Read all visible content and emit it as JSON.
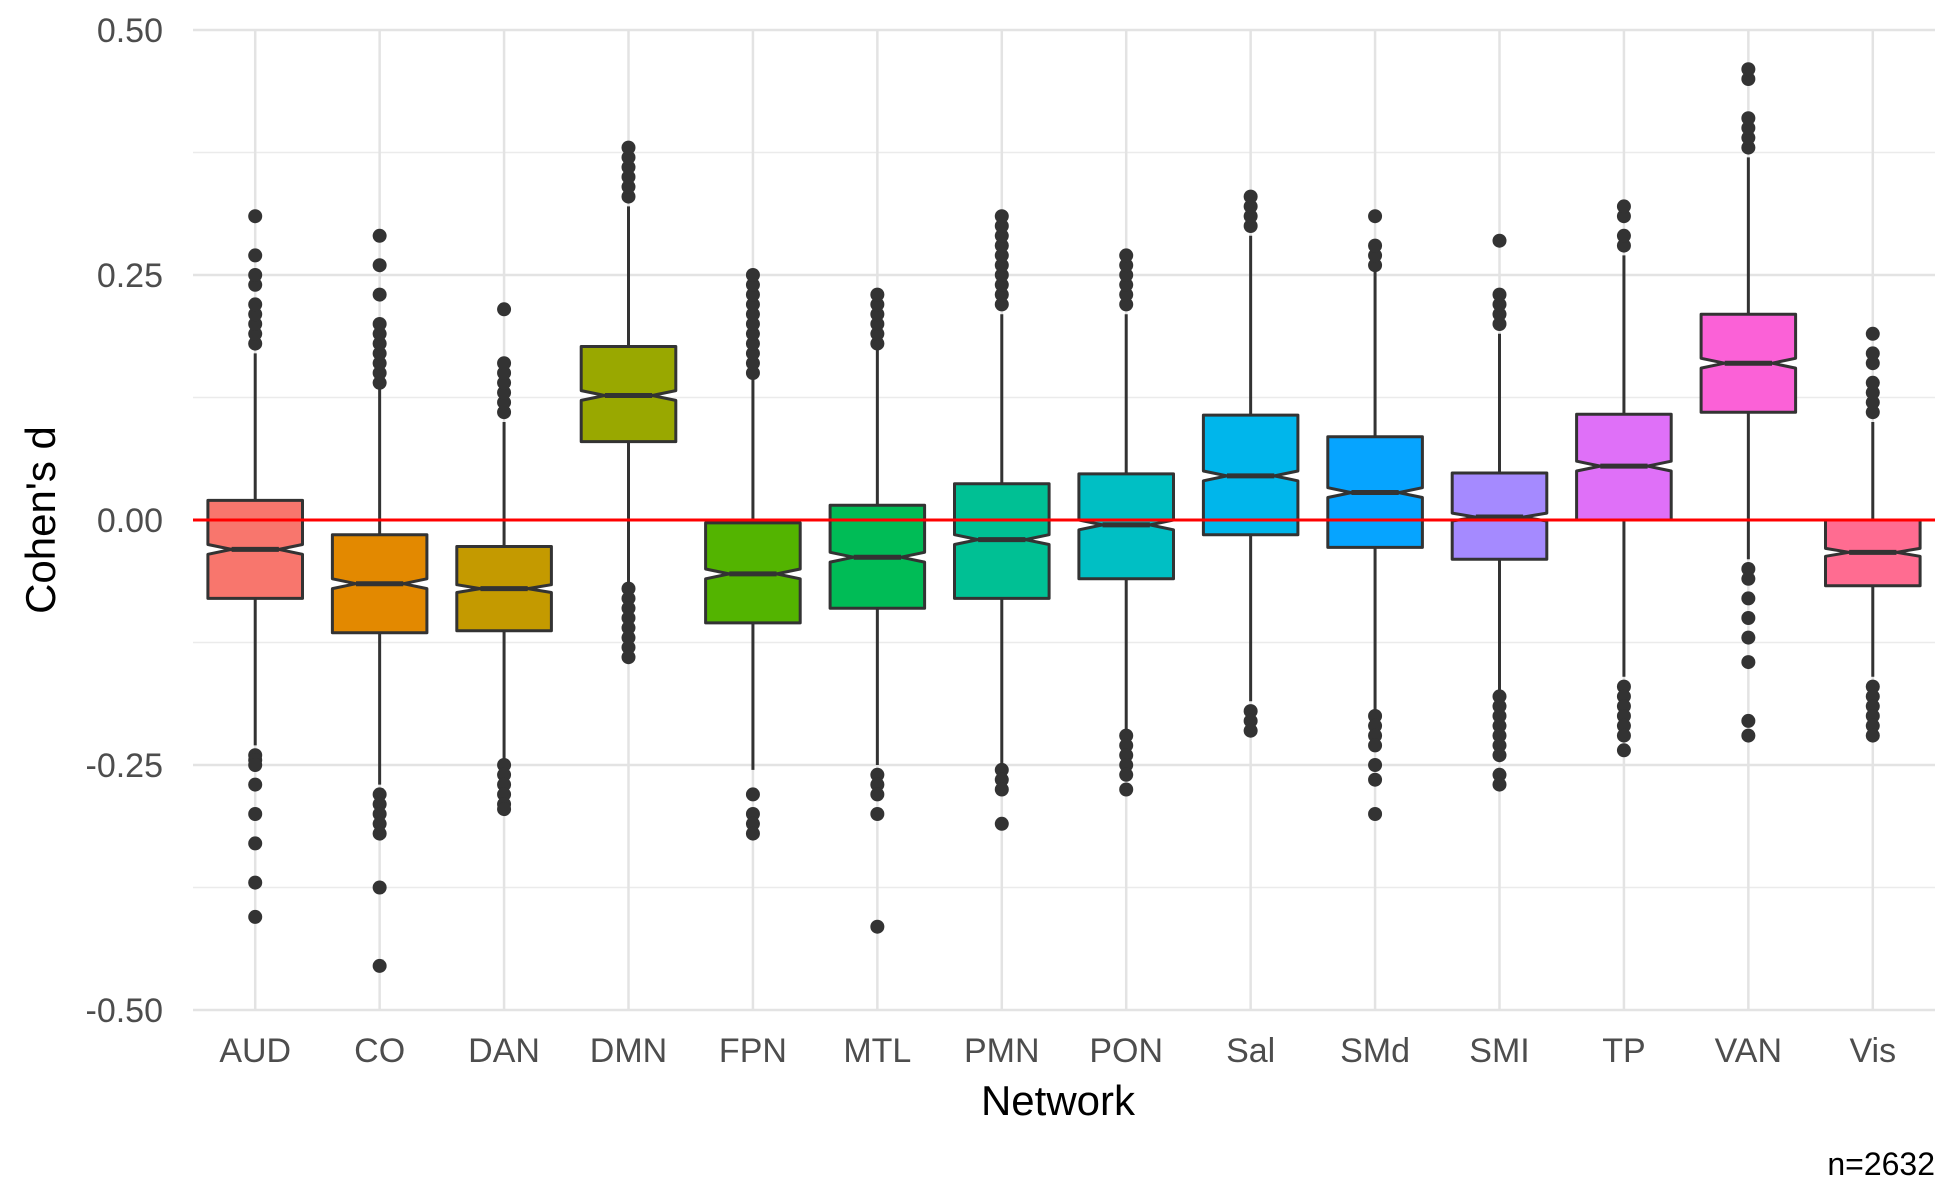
{
  "chart_data": {
    "type": "boxplot",
    "notched": true,
    "xlabel": "Network",
    "ylabel": "Cohen's d",
    "caption": "n=2632",
    "ylim": [
      -0.5,
      0.5
    ],
    "yticks": [
      "0.50",
      "0.25",
      "0.00",
      "-0.25",
      "-0.50"
    ],
    "ytick_values": [
      0.5,
      0.25,
      0,
      -0.25,
      -0.5
    ],
    "grid": true,
    "reference_line": {
      "y": 0,
      "color": "#ff0000"
    },
    "categories": [
      "AUD",
      "CO",
      "DAN",
      "DMN",
      "FPN",
      "MTL",
      "PMN",
      "PON",
      "Sal",
      "SMd",
      "SMI",
      "TP",
      "VAN",
      "Vis"
    ],
    "boxes": [
      {
        "name": "AUD",
        "color": "#F8766D",
        "q1": -0.08,
        "median": -0.03,
        "q3": 0.02,
        "notch": 0.005,
        "whisker_low": -0.23,
        "whisker_high": 0.17,
        "outliers": [
          0.18,
          0.19,
          0.2,
          0.21,
          0.22,
          0.24,
          0.25,
          0.27,
          0.31,
          -0.24,
          -0.245,
          -0.25,
          -0.27,
          -0.3,
          -0.33,
          -0.37,
          -0.405
        ]
      },
      {
        "name": "CO",
        "color": "#E38900",
        "q1": -0.115,
        "median": -0.065,
        "q3": -0.015,
        "notch": 0.005,
        "whisker_low": -0.27,
        "whisker_high": 0.135,
        "outliers": [
          0.14,
          0.15,
          0.16,
          0.17,
          0.18,
          0.19,
          0.2,
          0.23,
          0.26,
          0.29,
          -0.28,
          -0.29,
          -0.3,
          -0.31,
          -0.32,
          -0.375,
          -0.455
        ]
      },
      {
        "name": "DAN",
        "color": "#C49A00",
        "q1": -0.113,
        "median": -0.07,
        "q3": -0.027,
        "notch": 0.004,
        "whisker_low": -0.245,
        "whisker_high": 0.1,
        "outliers": [
          0.11,
          0.12,
          0.13,
          0.14,
          0.15,
          0.16,
          0.215,
          -0.25,
          -0.26,
          -0.27,
          -0.28,
          -0.29,
          -0.295
        ]
      },
      {
        "name": "DMN",
        "color": "#99A800",
        "q1": 0.08,
        "median": 0.127,
        "q3": 0.177,
        "notch": 0.005,
        "whisker_low": -0.065,
        "whisker_high": 0.32,
        "outliers": [
          0.33,
          0.34,
          0.35,
          0.36,
          0.37,
          0.38,
          -0.07,
          -0.08,
          -0.09,
          -0.1,
          -0.11,
          -0.12,
          -0.13,
          -0.14
        ]
      },
      {
        "name": "FPN",
        "color": "#53B400",
        "q1": -0.105,
        "median": -0.055,
        "q3": -0.003,
        "notch": 0.005,
        "whisker_low": -0.255,
        "whisker_high": 0.145,
        "outliers": [
          0.15,
          0.16,
          0.17,
          0.18,
          0.19,
          0.2,
          0.21,
          0.22,
          0.23,
          0.24,
          0.25,
          -0.28,
          -0.3,
          -0.31,
          -0.32
        ]
      },
      {
        "name": "MTL",
        "color": "#00BC56",
        "q1": -0.09,
        "median": -0.038,
        "q3": 0.015,
        "notch": 0.005,
        "whisker_low": -0.25,
        "whisker_high": 0.175,
        "outliers": [
          0.18,
          0.19,
          0.2,
          0.21,
          0.22,
          0.23,
          -0.26,
          -0.27,
          -0.28,
          -0.3,
          -0.415
        ]
      },
      {
        "name": "PMN",
        "color": "#00C094",
        "q1": -0.08,
        "median": -0.02,
        "q3": 0.037,
        "notch": 0.005,
        "whisker_low": -0.25,
        "whisker_high": 0.21,
        "outliers": [
          0.22,
          0.23,
          0.24,
          0.25,
          0.26,
          0.27,
          0.28,
          0.29,
          0.3,
          0.31,
          -0.255,
          -0.265,
          -0.275,
          -0.31
        ]
      },
      {
        "name": "PON",
        "color": "#00BFC4",
        "q1": -0.06,
        "median": -0.005,
        "q3": 0.047,
        "notch": 0.005,
        "whisker_low": -0.215,
        "whisker_high": 0.21,
        "outliers": [
          0.22,
          0.23,
          0.24,
          0.25,
          0.26,
          0.27,
          -0.22,
          -0.23,
          -0.24,
          -0.25,
          -0.26,
          -0.275
        ]
      },
      {
        "name": "Sal",
        "color": "#00B6EB",
        "q1": -0.015,
        "median": 0.045,
        "q3": 0.107,
        "notch": 0.005,
        "whisker_low": -0.185,
        "whisker_high": 0.29,
        "outliers": [
          0.3,
          0.31,
          0.32,
          0.33,
          -0.195,
          -0.205,
          -0.215
        ]
      },
      {
        "name": "SMd",
        "color": "#06A4FF",
        "q1": -0.028,
        "median": 0.028,
        "q3": 0.085,
        "notch": 0.005,
        "whisker_low": -0.195,
        "whisker_high": 0.255,
        "outliers": [
          0.26,
          0.27,
          0.28,
          0.31,
          -0.2,
          -0.21,
          -0.22,
          -0.23,
          -0.25,
          -0.265,
          -0.3
        ]
      },
      {
        "name": "SMI",
        "color": "#A58AFF",
        "q1": -0.04,
        "median": 0.003,
        "q3": 0.048,
        "notch": 0.004,
        "whisker_low": -0.175,
        "whisker_high": 0.19,
        "outliers": [
          0.2,
          0.21,
          0.22,
          0.23,
          0.285,
          -0.18,
          -0.19,
          -0.2,
          -0.21,
          -0.22,
          -0.23,
          -0.24,
          -0.26,
          -0.27
        ]
      },
      {
        "name": "TP",
        "color": "#DF70F8",
        "q1": 0.0,
        "median": 0.055,
        "q3": 0.108,
        "notch": 0.005,
        "whisker_low": -0.16,
        "whisker_high": 0.27,
        "outliers": [
          0.28,
          0.29,
          0.31,
          0.32,
          -0.17,
          -0.18,
          -0.19,
          -0.2,
          -0.21,
          -0.22,
          -0.235
        ]
      },
      {
        "name": "VAN",
        "color": "#FB61D7",
        "q1": 0.11,
        "median": 0.16,
        "q3": 0.21,
        "notch": 0.005,
        "whisker_low": -0.04,
        "whisker_high": 0.37,
        "outliers": [
          0.38,
          0.39,
          0.4,
          0.41,
          0.45,
          0.46,
          -0.05,
          -0.06,
          -0.08,
          -0.1,
          -0.12,
          -0.145,
          -0.205,
          -0.22
        ]
      },
      {
        "name": "Vis",
        "color": "#FF6C91",
        "q1": -0.067,
        "median": -0.033,
        "q3": 0.0,
        "notch": 0.004,
        "whisker_low": -0.16,
        "whisker_high": 0.1,
        "outliers": [
          0.11,
          0.12,
          0.13,
          0.14,
          0.16,
          0.17,
          0.19,
          -0.17,
          -0.18,
          -0.19,
          -0.2,
          -0.21,
          -0.22
        ]
      }
    ]
  }
}
